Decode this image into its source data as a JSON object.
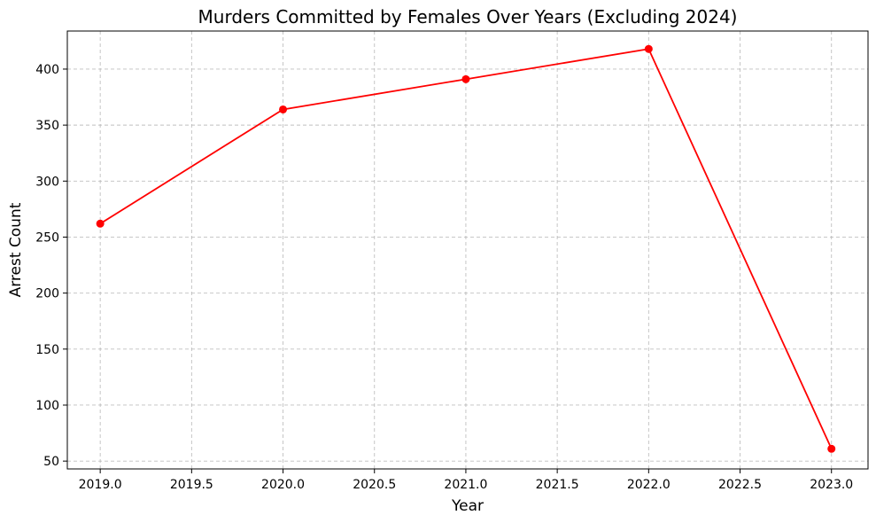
{
  "chart_data": {
    "type": "line",
    "title": "Murders Committed by Females Over Years (Excluding 2024)",
    "xlabel": "Year",
    "ylabel": "Arrest Count",
    "xlim": [
      2018.82,
      2023.2
    ],
    "ylim": [
      43,
      434
    ],
    "xticks": [
      2019.0,
      2019.5,
      2020.0,
      2020.5,
      2021.0,
      2021.5,
      2022.0,
      2022.5,
      2023.0
    ],
    "xtick_labels": [
      "2019.0",
      "2019.5",
      "2020.0",
      "2020.5",
      "2021.0",
      "2021.5",
      "2022.0",
      "2022.5",
      "2023.0"
    ],
    "yticks": [
      50,
      100,
      150,
      200,
      250,
      300,
      350,
      400
    ],
    "ytick_labels": [
      "50",
      "100",
      "150",
      "200",
      "250",
      "300",
      "350",
      "400"
    ],
    "grid": true,
    "series": [
      {
        "color": "#ff0000",
        "marker": "circle",
        "x": [
          2019,
          2020,
          2021,
          2022,
          2023
        ],
        "y": [
          262,
          364,
          391,
          418,
          61
        ]
      }
    ]
  }
}
